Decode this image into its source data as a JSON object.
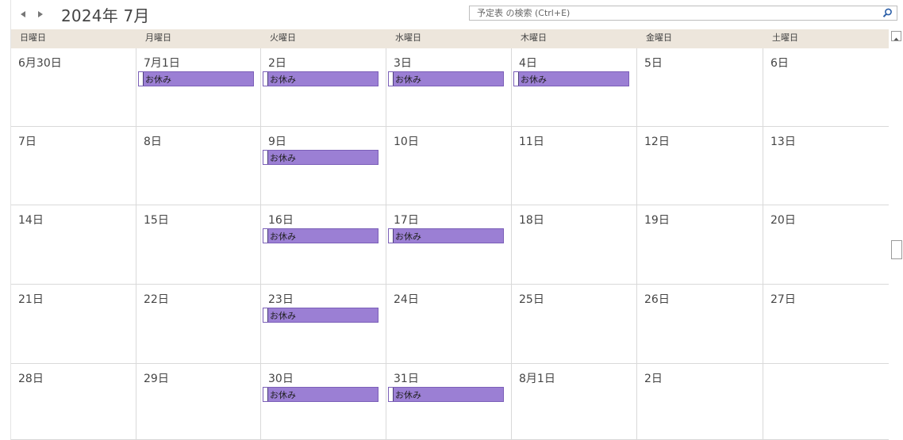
{
  "nav": {
    "prev_icon": "triangle-left-icon",
    "next_icon": "triangle-right-icon",
    "month_title": "2024年 7月"
  },
  "search": {
    "placeholder": "予定表 の検索 (Ctrl+E)",
    "icon": "magnifier-icon"
  },
  "weekdays": [
    "日曜日",
    "月曜日",
    "火曜日",
    "水曜日",
    "木曜日",
    "金曜日",
    "土曜日"
  ],
  "colors": {
    "header_bg": "#ede6dc",
    "event_bg": "#9b7fd4",
    "grid_line": "#d9d9d9"
  },
  "weeks": [
    [
      {
        "date": "6月30日",
        "events": []
      },
      {
        "date": "7月1日",
        "events": [
          "お休み"
        ]
      },
      {
        "date": "2日",
        "events": [
          "お休み"
        ]
      },
      {
        "date": "3日",
        "events": [
          "お休み"
        ]
      },
      {
        "date": "4日",
        "events": [
          "お休み"
        ]
      },
      {
        "date": "5日",
        "events": []
      },
      {
        "date": "6日",
        "events": []
      }
    ],
    [
      {
        "date": "7日",
        "events": []
      },
      {
        "date": "8日",
        "events": []
      },
      {
        "date": "9日",
        "events": [
          "お休み"
        ]
      },
      {
        "date": "10日",
        "events": []
      },
      {
        "date": "11日",
        "events": []
      },
      {
        "date": "12日",
        "events": []
      },
      {
        "date": "13日",
        "events": []
      }
    ],
    [
      {
        "date": "14日",
        "events": []
      },
      {
        "date": "15日",
        "events": []
      },
      {
        "date": "16日",
        "events": [
          "お休み"
        ]
      },
      {
        "date": "17日",
        "events": [
          "お休み"
        ]
      },
      {
        "date": "18日",
        "events": []
      },
      {
        "date": "19日",
        "events": []
      },
      {
        "date": "20日",
        "events": []
      }
    ],
    [
      {
        "date": "21日",
        "events": []
      },
      {
        "date": "22日",
        "events": []
      },
      {
        "date": "23日",
        "events": [
          "お休み"
        ]
      },
      {
        "date": "24日",
        "events": []
      },
      {
        "date": "25日",
        "events": []
      },
      {
        "date": "26日",
        "events": []
      },
      {
        "date": "27日",
        "events": []
      }
    ],
    [
      {
        "date": "28日",
        "events": []
      },
      {
        "date": "29日",
        "events": []
      },
      {
        "date": "30日",
        "events": [
          "お休み"
        ]
      },
      {
        "date": "31日",
        "events": [
          "お休み"
        ]
      },
      {
        "date": "8月1日",
        "events": []
      },
      {
        "date": "2日",
        "events": []
      },
      {
        "date": "",
        "events": []
      }
    ]
  ]
}
